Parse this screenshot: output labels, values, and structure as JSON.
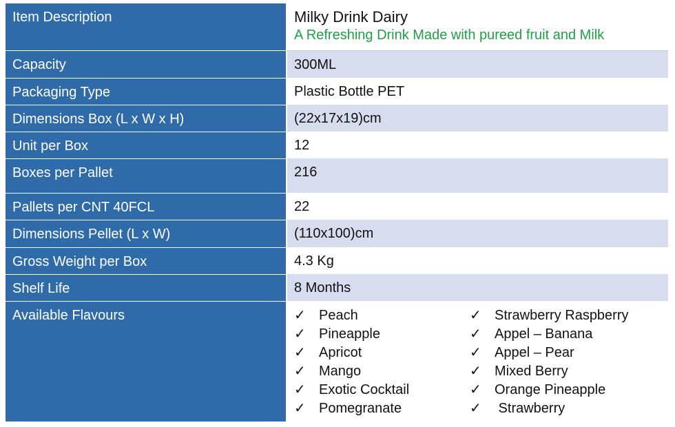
{
  "rows": [
    {
      "label": "Item Description",
      "title": "Milky Drink Dairy",
      "subtitle": "A Refreshing Drink Made with pureed fruit and Milk"
    },
    {
      "label": "Capacity",
      "value": "300ML"
    },
    {
      "label": "Packaging Type",
      "value": "Plastic Bottle PET"
    },
    {
      "label": "Dimensions Box (L x W x H)",
      "value": "(22x17x19)cm"
    },
    {
      "label": "Unit per Box",
      "value": "12"
    },
    {
      "label": "Boxes per Pallet",
      "value": "216"
    },
    {
      "label": "Pallets per CNT 40FCL",
      "value": "22"
    },
    {
      "label": "Dimensions Pellet (L x W)",
      "value": "(110x100)cm"
    },
    {
      "label": "Gross Weight per Box",
      "value": "4.3 Kg"
    },
    {
      "label": "Shelf Life",
      "value": "8 Months"
    },
    {
      "label": "Available Flavours"
    }
  ],
  "flavours_left": [
    "Peach",
    "Pineapple",
    "Apricot",
    "Mango",
    "Exotic Cocktail",
    "Pomegranate"
  ],
  "flavours_right": [
    "Strawberry Raspberry",
    "Appel – Banana",
    "Appel – Pear",
    "Mixed Berry",
    "Orange Pineapple",
    " Strawberry"
  ],
  "check_mark": "✓",
  "colors": {
    "label_bg": "#2e6ba8",
    "shade_bg": "#d8dcef",
    "subtitle": "#1ea043"
  }
}
